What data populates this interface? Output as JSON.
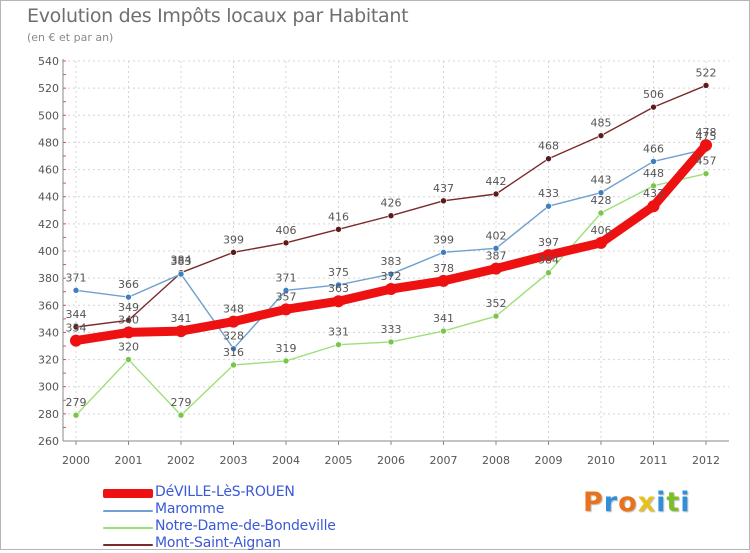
{
  "header": {
    "title": "Evolution des Impôts locaux par Habitant",
    "subtitle": "(en € et par an)"
  },
  "logo": {
    "text": "Proxiti",
    "letters": [
      {
        "ch": "P",
        "color": "#e8731c"
      },
      {
        "ch": "r",
        "color": "#2f8fd8"
      },
      {
        "ch": "o",
        "color": "#e8731c"
      },
      {
        "ch": "x",
        "color": "#e8c21c"
      },
      {
        "ch": "i",
        "color": "#2f8fd8"
      },
      {
        "ch": "t",
        "color": "#7cbd2a"
      },
      {
        "ch": "i",
        "color": "#2f8fd8"
      }
    ]
  },
  "chart_data": {
    "type": "line",
    "title": "Evolution des Impôts locaux par Habitant",
    "subtitle": "(en € et par an)",
    "xlabel": "",
    "ylabel": "",
    "ylim": [
      260,
      540
    ],
    "yticks": [
      260,
      280,
      300,
      320,
      340,
      360,
      380,
      400,
      420,
      440,
      460,
      480,
      500,
      520,
      540
    ],
    "categories": [
      "2000",
      "2001",
      "2002",
      "2003",
      "2004",
      "2005",
      "2006",
      "2007",
      "2008",
      "2009",
      "2010",
      "2011",
      "2012"
    ],
    "grid": true,
    "legend_position": "bottom-left",
    "series": [
      {
        "name": "Mont-Saint-Aignan",
        "color": "#7a2a2a",
        "marker": "#5c1a1a",
        "values": [
          344,
          349,
          384,
          399,
          406,
          416,
          426,
          437,
          442,
          468,
          485,
          506,
          522
        ]
      },
      {
        "name": "Maromme",
        "color": "#6fa0d0",
        "marker": "#3f7fc0",
        "values": [
          371,
          366,
          383,
          328,
          371,
          375,
          383,
          399,
          402,
          433,
          443,
          466,
          475
        ]
      },
      {
        "name": "Notre-Dame-de-Bondeville",
        "color": "#9de07a",
        "marker": "#78c64a",
        "values": [
          279,
          320,
          279,
          316,
          319,
          331,
          333,
          341,
          352,
          384,
          428,
          448,
          457
        ]
      },
      {
        "name": "DéVILLE-LèS-ROUEN",
        "color": "#ee1111",
        "marker": "#ee1111",
        "values": [
          334,
          340,
          341,
          348,
          357,
          363,
          372,
          378,
          387,
          397,
          406,
          433,
          478
        ]
      }
    ],
    "legend_order": [
      "DéVILLE-LèS-ROUEN",
      "Maromme",
      "Notre-Dame-de-Bondeville",
      "Mont-Saint-Aignan"
    ]
  }
}
